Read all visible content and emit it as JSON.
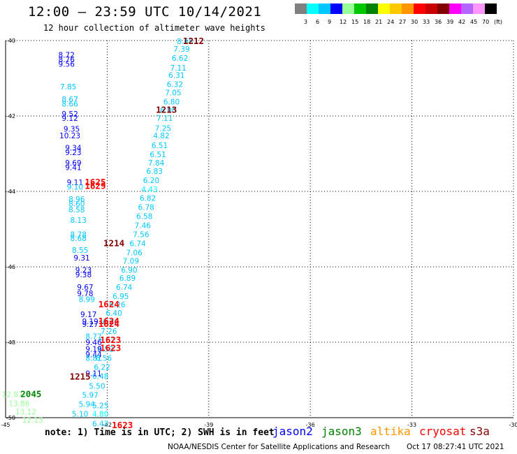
{
  "header": {
    "title": "12:00 — 23:59 UTC 10/14/2021",
    "subtitle": "12 hour collection of altimeter wave heights"
  },
  "legend": {
    "colors": [
      "#808080",
      "#00ffff",
      "#00c8ff",
      "#0000ff",
      "#96ff96",
      "#00c800",
      "#008200",
      "#ffff00",
      "#ffc800",
      "#ff9600",
      "#ff0000",
      "#c80000",
      "#820000",
      "#ff00ff",
      "#b464ff",
      "#ff96ff",
      "#000000"
    ],
    "labels": [
      "3",
      "6",
      "9",
      "12",
      "15",
      "18",
      "21",
      "24",
      "27",
      "30",
      "33",
      "36",
      "39",
      "42",
      "45",
      "70",
      "(ft)"
    ]
  },
  "axes": {
    "lat_labels": [
      "-40",
      "-42",
      "-44",
      "-46",
      "-48",
      "-50"
    ],
    "lon_labels": [
      "-45",
      "-42",
      "-39",
      "-36",
      "-33",
      "-30"
    ]
  },
  "observations": [
    {
      "t": "8.68",
      "c": "#00c8ff",
      "lon": -39.7,
      "lat": -40.02
    },
    {
      "t": "7.39",
      "c": "#00c8ff",
      "lon": -39.8,
      "lat": -40.22
    },
    {
      "t": "6.62",
      "c": "#00c8ff",
      "lon": -39.85,
      "lat": -40.46
    },
    {
      "t": "7.11",
      "c": "#00c8ff",
      "lon": -39.9,
      "lat": -40.72
    },
    {
      "t": "6.31",
      "c": "#00c8ff",
      "lon": -39.95,
      "lat": -40.92
    },
    {
      "t": "6.32",
      "c": "#00c8ff",
      "lon": -40.0,
      "lat": -41.16
    },
    {
      "t": "7.05",
      "c": "#00c8ff",
      "lon": -40.05,
      "lat": -41.38
    },
    {
      "t": "6.80",
      "c": "#00c8ff",
      "lon": -40.1,
      "lat": -41.62
    },
    {
      "t": "6.00",
      "c": "#00c8ff",
      "lon": -40.2,
      "lat": -41.84
    },
    {
      "t": "7.11",
      "c": "#00c8ff",
      "lon": -40.3,
      "lat": -42.06
    },
    {
      "t": "7.25",
      "c": "#00c8ff",
      "lon": -40.35,
      "lat": -42.32
    },
    {
      "t": "4.82",
      "c": "#00c8ff",
      "lon": -40.4,
      "lat": -42.52
    },
    {
      "t": "6.51",
      "c": "#00c8ff",
      "lon": -40.45,
      "lat": -42.78
    },
    {
      "t": "6.51",
      "c": "#00c8ff",
      "lon": -40.5,
      "lat": -43.02
    },
    {
      "t": "7.84",
      "c": "#00c8ff",
      "lon": -40.55,
      "lat": -43.24
    },
    {
      "t": "6.83",
      "c": "#00c8ff",
      "lon": -40.6,
      "lat": -43.46
    },
    {
      "t": "6.20",
      "c": "#00c8ff",
      "lon": -40.7,
      "lat": -43.7
    },
    {
      "t": "4.43",
      "c": "#00ffff",
      "lon": -40.75,
      "lat": -43.94
    },
    {
      "t": "6.82",
      "c": "#00c8ff",
      "lon": -40.8,
      "lat": -44.18
    },
    {
      "t": "6.78",
      "c": "#00c8ff",
      "lon": -40.85,
      "lat": -44.42
    },
    {
      "t": "6.58",
      "c": "#00c8ff",
      "lon": -40.9,
      "lat": -44.66
    },
    {
      "t": "7.46",
      "c": "#00c8ff",
      "lon": -40.95,
      "lat": -44.9
    },
    {
      "t": "7.56",
      "c": "#00c8ff",
      "lon": -41.0,
      "lat": -45.14
    },
    {
      "t": "6.74",
      "c": "#00c8ff",
      "lon": -41.1,
      "lat": -45.38
    },
    {
      "t": "7.06",
      "c": "#00c8ff",
      "lon": -41.2,
      "lat": -45.62
    },
    {
      "t": "7.09",
      "c": "#00c8ff",
      "lon": -41.3,
      "lat": -45.84
    },
    {
      "t": "6.90",
      "c": "#00c8ff",
      "lon": -41.35,
      "lat": -46.08
    },
    {
      "t": "6.89",
      "c": "#00c8ff",
      "lon": -41.4,
      "lat": -46.3
    },
    {
      "t": "6.74",
      "c": "#00c8ff",
      "lon": -41.5,
      "lat": -46.54
    },
    {
      "t": "6.95",
      "c": "#00c8ff",
      "lon": -41.6,
      "lat": -46.78
    },
    {
      "t": "6.26",
      "c": "#00c8ff",
      "lon": -41.7,
      "lat": -47.0
    },
    {
      "t": "6.40",
      "c": "#00c8ff",
      "lon": -41.8,
      "lat": -47.22
    },
    {
      "t": "6.30",
      "c": "#00c8ff",
      "lon": -41.9,
      "lat": -47.46
    },
    {
      "t": "7.26",
      "c": "#00c8ff",
      "lon": -41.95,
      "lat": -47.7
    },
    {
      "t": "6.67",
      "c": "#00c8ff",
      "lon": -42.0,
      "lat": -47.94
    },
    {
      "t": "6.52",
      "c": "#00c8ff",
      "lon": -42.05,
      "lat": -48.18
    },
    {
      "t": "6.56",
      "c": "#00c8ff",
      "lon": -42.1,
      "lat": -48.42
    },
    {
      "t": "6.22",
      "c": "#00c8ff",
      "lon": -42.15,
      "lat": -48.66
    },
    {
      "t": "6.48",
      "c": "#00c8ff",
      "lon": -42.2,
      "lat": -48.9
    },
    {
      "t": "5.50",
      "c": "#00c8ff",
      "lon": -42.3,
      "lat": -49.16
    },
    {
      "t": "5.97",
      "c": "#00c8ff",
      "lon": -42.5,
      "lat": -49.4
    },
    {
      "t": "5.94",
      "c": "#00c8ff",
      "lon": -42.6,
      "lat": -49.64
    },
    {
      "t": "5.10",
      "c": "#00c8ff",
      "lon": -42.8,
      "lat": -49.9
    },
    {
      "t": "12.87",
      "c": "#96ff96",
      "lon": -44.8,
      "lat": -49.38
    },
    {
      "t": "13.86",
      "c": "#96ff96",
      "lon": -44.6,
      "lat": -49.62
    },
    {
      "t": "13.12",
      "c": "#96ff96",
      "lon": -44.4,
      "lat": -49.84
    },
    {
      "t": "12.13",
      "c": "#96ff96",
      "lon": -44.2,
      "lat": -50.06
    },
    {
      "t": "8.72",
      "c": "#0000ff",
      "lon": -43.2,
      "lat": -40.38
    },
    {
      "t": "8.76",
      "c": "#0000ff",
      "lon": -43.2,
      "lat": -40.5
    },
    {
      "t": "9.56",
      "c": "#0000ff",
      "lon": -43.2,
      "lat": -40.62
    },
    {
      "t": "7.85",
      "c": "#00c8ff",
      "lon": -43.15,
      "lat": -41.22
    },
    {
      "t": "8.67",
      "c": "#00c8ff",
      "lon": -43.1,
      "lat": -41.56
    },
    {
      "t": "8.66",
      "c": "#00c8ff",
      "lon": -43.1,
      "lat": -41.68
    },
    {
      "t": "9.52",
      "c": "#0000ff",
      "lon": -43.1,
      "lat": -41.94
    },
    {
      "t": "9.12",
      "c": "#0000ff",
      "lon": -43.1,
      "lat": -42.06
    },
    {
      "t": "9.35",
      "c": "#0000ff",
      "lon": -43.05,
      "lat": -42.34
    },
    {
      "t": "10.23",
      "c": "#0000ff",
      "lon": -43.1,
      "lat": -42.52
    },
    {
      "t": "9.34",
      "c": "#0000ff",
      "lon": -43.0,
      "lat": -42.84
    },
    {
      "t": "9.23",
      "c": "#0000ff",
      "lon": -43.0,
      "lat": -42.96
    },
    {
      "t": "9.69",
      "c": "#0000ff",
      "lon": -43.0,
      "lat": -43.24
    },
    {
      "t": "9.41",
      "c": "#0000ff",
      "lon": -43.0,
      "lat": -43.36
    },
    {
      "t": "9.11",
      "c": "#0000ff",
      "lon": -42.95,
      "lat": -43.76
    },
    {
      "t": "9.10",
      "c": "#00c8ff",
      "lon": -42.95,
      "lat": -43.88
    },
    {
      "t": "8.96",
      "c": "#00c8ff",
      "lon": -42.9,
      "lat": -44.2
    },
    {
      "t": "8.60",
      "c": "#00c8ff",
      "lon": -42.9,
      "lat": -44.32
    },
    {
      "t": "8.58",
      "c": "#00c8ff",
      "lon": -42.9,
      "lat": -44.48
    },
    {
      "t": "8.13",
      "c": "#00c8ff",
      "lon": -42.85,
      "lat": -44.76
    },
    {
      "t": "8.78",
      "c": "#00c8ff",
      "lon": -42.85,
      "lat": -45.14
    },
    {
      "t": "8.68",
      "c": "#00c8ff",
      "lon": -42.85,
      "lat": -45.24
    },
    {
      "t": "8.55",
      "c": "#00c8ff",
      "lon": -42.8,
      "lat": -45.56
    },
    {
      "t": "9.31",
      "c": "#0000ff",
      "lon": -42.75,
      "lat": -45.76
    },
    {
      "t": "9.23",
      "c": "#0000ff",
      "lon": -42.7,
      "lat": -46.08
    },
    {
      "t": "9.38",
      "c": "#0000ff",
      "lon": -42.7,
      "lat": -46.2
    },
    {
      "t": "9.67",
      "c": "#0000ff",
      "lon": -42.65,
      "lat": -46.54
    },
    {
      "t": "9.78",
      "c": "#0000ff",
      "lon": -42.65,
      "lat": -46.7
    },
    {
      "t": "8.99",
      "c": "#00c8ff",
      "lon": -42.6,
      "lat": -46.86
    },
    {
      "t": "9.17",
      "c": "#0000ff",
      "lon": -42.55,
      "lat": -47.26
    },
    {
      "t": "9.19",
      "c": "#0000ff",
      "lon": -42.5,
      "lat": -47.44
    },
    {
      "t": "9.27",
      "c": "#0000ff",
      "lon": -42.5,
      "lat": -47.52
    },
    {
      "t": "8.77",
      "c": "#00c8ff",
      "lon": -42.4,
      "lat": -47.84
    },
    {
      "t": "9.46",
      "c": "#0000ff",
      "lon": -42.4,
      "lat": -48.0
    },
    {
      "t": "9.19",
      "c": "#0000ff",
      "lon": -42.4,
      "lat": -48.18
    },
    {
      "t": "9.44",
      "c": "#0000ff",
      "lon": -42.4,
      "lat": -48.32
    },
    {
      "t": "8.81",
      "c": "#00c8ff",
      "lon": -42.4,
      "lat": -48.42
    },
    {
      "t": "9.11",
      "c": "#0000ff",
      "lon": -42.4,
      "lat": -48.82
    },
    {
      "t": "5.25",
      "c": "#00c8ff",
      "lon": -42.2,
      "lat": -49.68
    },
    {
      "t": "4.80",
      "c": "#00ffff",
      "lon": -42.2,
      "lat": -49.9
    },
    {
      "t": "6.43",
      "c": "#00c8ff",
      "lon": -42.2,
      "lat": -50.16
    }
  ],
  "track_ids": [
    {
      "t": "1212",
      "c": "#820000",
      "lon": -39.45,
      "lat": -40.02
    },
    {
      "t": "1213",
      "c": "#820000",
      "lon": -40.25,
      "lat": -41.84
    },
    {
      "t": "1214",
      "c": "#820000",
      "lon": -41.8,
      "lat": -45.38
    },
    {
      "t": "1215",
      "c": "#820000",
      "lon": -42.8,
      "lat": -48.92
    },
    {
      "t": "1625",
      "c": "#ff0000",
      "lon": -42.35,
      "lat": -43.76
    },
    {
      "t": "1629",
      "c": "#ff0000",
      "lon": -42.35,
      "lat": -43.86
    },
    {
      "t": "1624",
      "c": "#ff0000",
      "lon": -41.95,
      "lat": -47.0
    },
    {
      "t": "1624",
      "c": "#ff0000",
      "lon": -41.95,
      "lat": -47.44
    },
    {
      "t": "1624",
      "c": "#ff0000",
      "lon": -41.95,
      "lat": -47.52
    },
    {
      "t": "1623",
      "c": "#ff0000",
      "lon": -41.9,
      "lat": -47.94
    },
    {
      "t": "1623",
      "c": "#ff0000",
      "lon": -41.9,
      "lat": -48.16
    },
    {
      "t": "1623",
      "c": "#ff0000",
      "lon": -41.55,
      "lat": -50.2
    },
    {
      "t": "2045",
      "c": "#008200",
      "lon": -44.25,
      "lat": -49.38
    }
  ],
  "footer": {
    "note": "note: 1) Time is in UTC; 2) SWH is in feet",
    "satellites": [
      {
        "name": "jason2",
        "color": "#0000ff"
      },
      {
        "name": "jason3",
        "color": "#008200"
      },
      {
        "name": "altika",
        "color": "#ff9600"
      },
      {
        "name": "cryosat",
        "color": "#ff0000"
      },
      {
        "name": "s3a",
        "color": "#820000"
      }
    ],
    "credit": "NOAA/NESDIS Center for Satellite Applications and Research",
    "generated": "Oct 17 08:27:41 UTC 2021"
  }
}
